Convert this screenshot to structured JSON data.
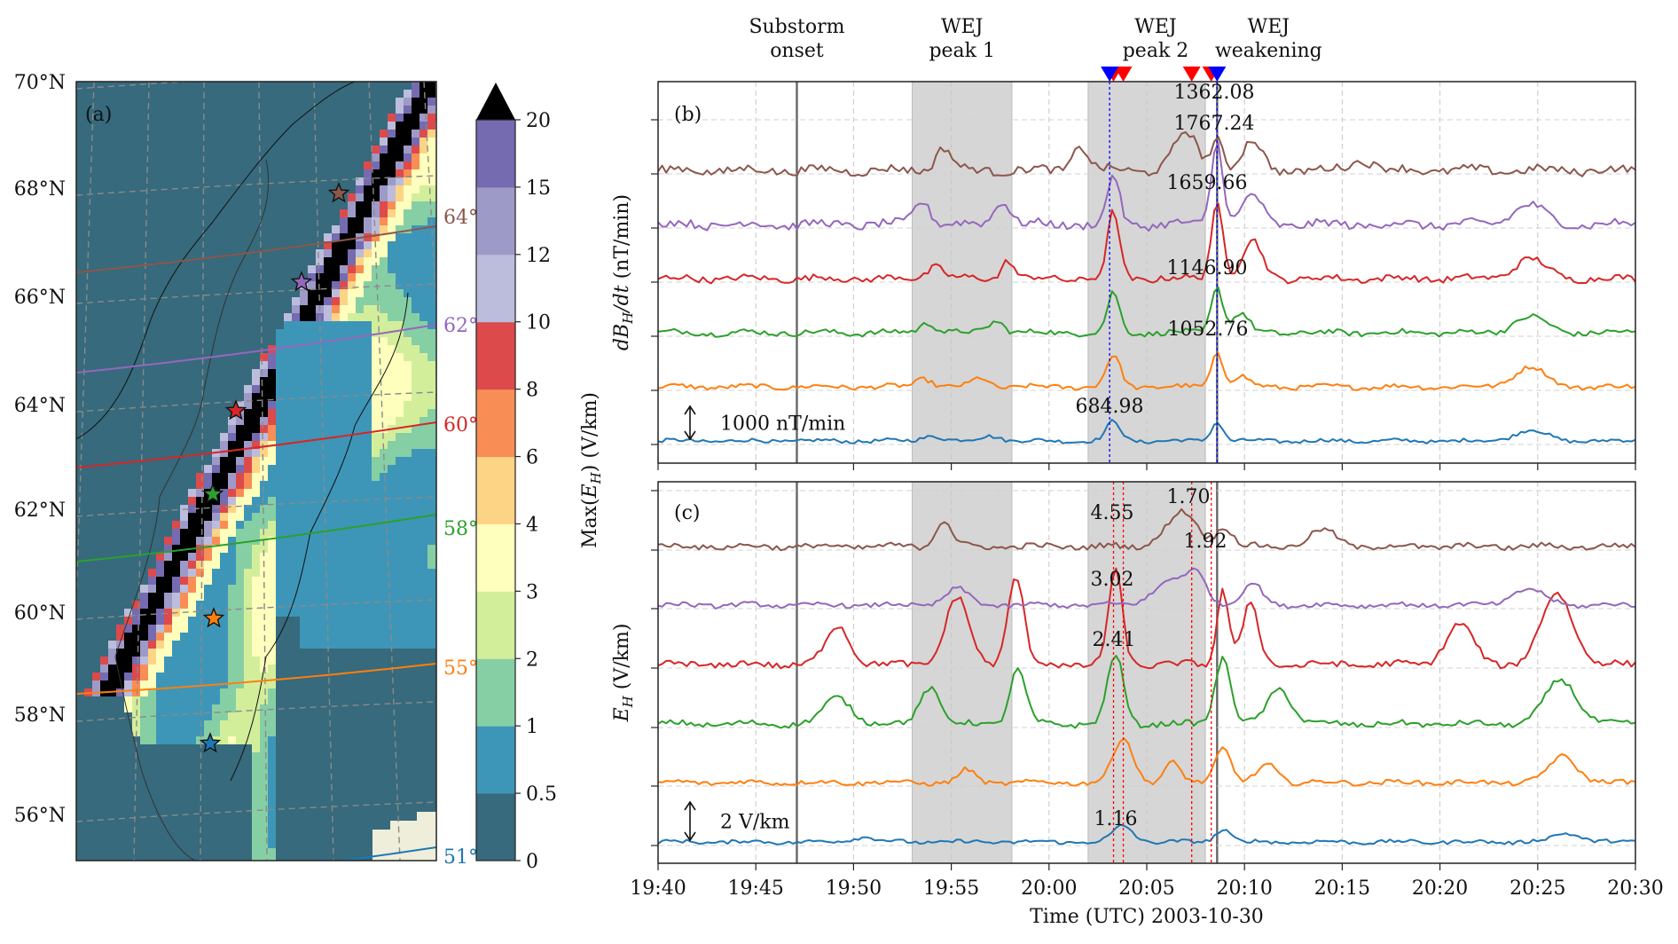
{
  "chart_data": [
    {
      "id": "a",
      "type": "heatmap",
      "panel_label": "(a)",
      "title": "",
      "colorbar": {
        "label": "Max(E_H) (V/km)",
        "ticks": [
          "0",
          "0.5",
          "1",
          "2",
          "3",
          "4",
          "6",
          "8",
          "10",
          "12",
          "15",
          "20"
        ],
        "bounds": [
          0,
          0.5,
          1,
          2,
          3,
          4,
          6,
          8,
          10,
          12,
          15,
          20
        ],
        "colors": [
          "#366a7c",
          "#3d96b8",
          "#86cfa5",
          "#d3ee9b",
          "#fefebd",
          "#fdd485",
          "#f88e55",
          "#dd4a4c",
          "#bcbddc",
          "#9e9ac8",
          "#756bb1"
        ],
        "extend": "max",
        "extend_color": "#000000"
      },
      "lat_ticks": [
        "70°N",
        "68°N",
        "66°N",
        "64°N",
        "62°N",
        "60°N",
        "58°N",
        "56°N"
      ],
      "lat_range": [
        55,
        70
      ],
      "mlat_contours": [
        {
          "label": "64°",
          "color": "#8c564b"
        },
        {
          "label": "62°",
          "color": "#9467bd"
        },
        {
          "label": "60°",
          "color": "#d62728"
        },
        {
          "label": "58°",
          "color": "#2ca02c"
        },
        {
          "label": "55°",
          "color": "#ff7f0e"
        },
        {
          "label": "51°",
          "color": "#1f77b4"
        }
      ],
      "stations": [
        {
          "color": "#8c564b",
          "lat": 68.0
        },
        {
          "color": "#9467bd",
          "lat": 66.4
        },
        {
          "color": "#d62728",
          "lat": 64.0
        },
        {
          "color": "#2ca02c",
          "lat": 62.4
        },
        {
          "color": "#ff7f0e",
          "lat": 59.9
        },
        {
          "color": "#1f77b4",
          "lat": 57.4
        }
      ]
    },
    {
      "id": "b",
      "type": "line",
      "panel_label": "(b)",
      "ylabel": "dB_H/dt (nT/min)",
      "scale_bar": "1000 nT/min",
      "series_colors": [
        "#1f77b4",
        "#ff7f0e",
        "#2ca02c",
        "#d62728",
        "#9467bd",
        "#8c564b"
      ],
      "peak_labels": [
        {
          "text": "684.98",
          "series": 0
        },
        {
          "text": "1052.76",
          "series": 1
        },
        {
          "text": "1146.90",
          "series": 2
        },
        {
          "text": "1659.66",
          "series": 3
        },
        {
          "text": "1767.24",
          "series": 4
        },
        {
          "text": "1362.08",
          "series": 5
        }
      ]
    },
    {
      "id": "c",
      "type": "line",
      "panel_label": "(c)",
      "ylabel": "E_H (V/km)",
      "scale_bar": "2 V/km",
      "series_colors": [
        "#1f77b4",
        "#ff7f0e",
        "#2ca02c",
        "#d62728",
        "#9467bd",
        "#8c564b"
      ],
      "peak_labels": [
        {
          "text": "1.16",
          "series": 0
        },
        {
          "text": "2.41",
          "series": 1
        },
        {
          "text": "3.02",
          "series": 2
        },
        {
          "text": "4.55",
          "series": 3
        },
        {
          "text": "1.92",
          "series": 4
        },
        {
          "text": "1.70",
          "series": 5
        }
      ]
    }
  ],
  "shared_x": {
    "xlabel": "Time (UTC) 2003-10-30",
    "xlim_minutes": [
      0,
      50
    ],
    "tick_labels": [
      "19:40",
      "19:45",
      "19:50",
      "19:55",
      "20:00",
      "20:05",
      "20:10",
      "20:15",
      "20:20",
      "20:25",
      "20:30"
    ]
  },
  "events": [
    {
      "label_line1": "Substorm",
      "label_line2": "onset",
      "type": "line",
      "t_min": 7.1
    },
    {
      "label_line1": "WEJ",
      "label_line2": "peak 1",
      "type": "span",
      "t_start": 13.0,
      "t_end": 18.1
    },
    {
      "label_line1": "WEJ",
      "label_line2": "peak 2",
      "type": "span",
      "t_start": 22.0,
      "t_end": 28.0
    },
    {
      "label_line1": "WEJ",
      "label_line2": "weakening",
      "type": "line",
      "t_min": 28.6
    }
  ],
  "markers": {
    "blue": [
      23.1,
      28.6
    ],
    "red": [
      23.3,
      23.8,
      27.3,
      28.3
    ],
    "blue_color": "#0000ff",
    "red_color": "#ff0000"
  }
}
